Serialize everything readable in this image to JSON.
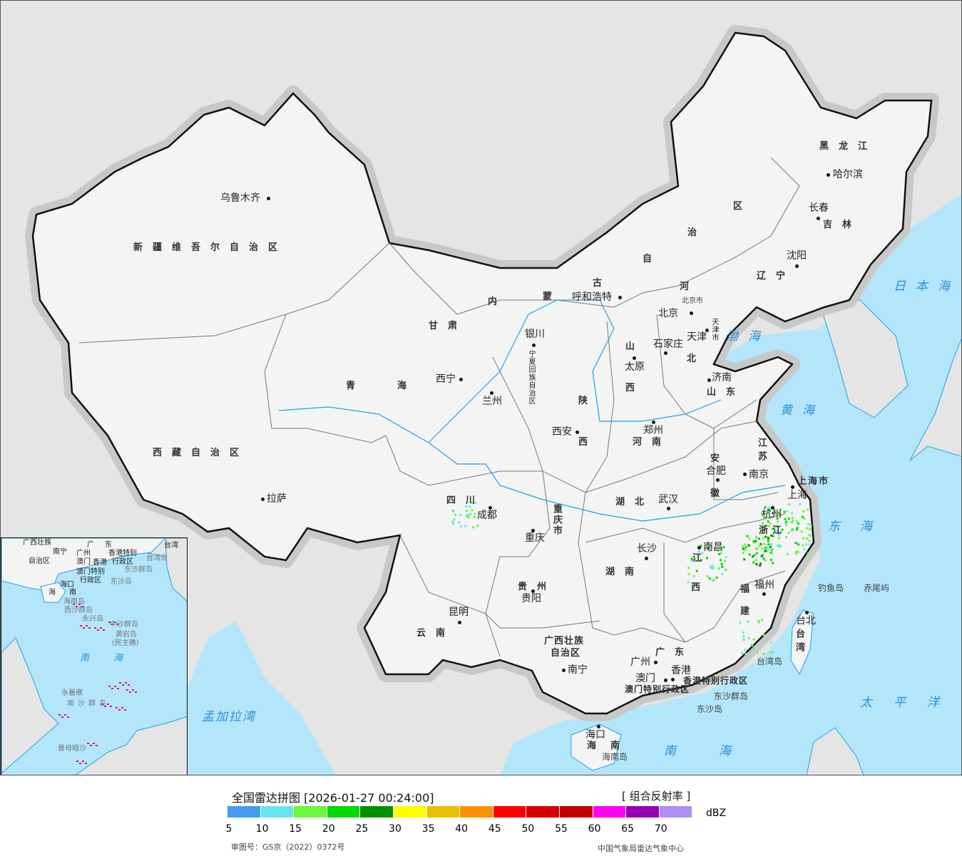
{
  "map": {
    "provinces": [
      "新疆维吾尔自治区",
      "西藏自治区",
      "青",
      "海",
      "甘肃",
      "内",
      "蒙",
      "古",
      "自",
      "治",
      "区",
      "黑龙江",
      "吉林",
      "辽宁",
      "河",
      "北",
      "山",
      "西",
      "山东",
      "河南",
      "陕",
      "西",
      "宁夏回族自治区",
      "四川",
      "重庆市",
      "湖北",
      "湖南",
      "贵州",
      "云南",
      "广西壮族",
      "自治区",
      "广东",
      "江",
      "西",
      "安",
      "徽",
      "江苏",
      "浙江",
      "福建",
      "台湾",
      "海南",
      "上海市",
      "北京市",
      "天津市"
    ],
    "cities": [
      "乌鲁木齐",
      "拉萨",
      "西宁",
      "兰州",
      "银川",
      "呼和浩特",
      "北京",
      "天津",
      "石家庄",
      "太原",
      "济南",
      "郑州",
      "西安",
      "合肥",
      "南京",
      "上海",
      "杭州",
      "武汉",
      "成都",
      "重庆",
      "长沙",
      "南昌",
      "福州",
      "贵阳",
      "昆明",
      "南宁",
      "广州",
      "香港",
      "澳门",
      "海口",
      "台北",
      "长春",
      "哈尔滨",
      "沈阳"
    ],
    "others": [
      "香港特别行政区",
      "澳门特别行政区",
      "东沙群岛",
      "东沙岛",
      "海南岛",
      "台湾岛",
      "钓鱼岛",
      "赤尾屿"
    ],
    "seas": [
      "日本海",
      "渤海",
      "黄海",
      "东海",
      "太平洋",
      "南海",
      "孟加拉湾"
    ],
    "inset": [
      "广西壮族",
      "自治区",
      "南宁",
      "广",
      "东",
      "广州",
      "澳门",
      "香港",
      "香港特别",
      "行政区",
      "澳门特别",
      "行政区",
      "台湾",
      "台湾岛",
      "东沙群岛",
      "东沙岛",
      "海口",
      "海",
      "南",
      "海南岛",
      "西沙群岛",
      "永兴岛",
      "中沙群岛",
      "黄岩岛",
      "(民主礁)",
      "南",
      "海",
      "永暑礁",
      "南沙群岛",
      "曾母暗沙"
    ],
    "colors": {
      "sea": "#b3e6fb",
      "land": "#e5e5e5",
      "china": "#f4f4f4",
      "border": "#111111",
      "river": "#1aa3e8",
      "islands": "#e0117f"
    }
  },
  "legend": {
    "title": "全国雷达拼图 [2026-01-27 00:24:00]",
    "product": "[ 组合反射率 ]",
    "unit": "dBZ",
    "ticks": [
      "5",
      "10",
      "15",
      "20",
      "25",
      "30",
      "35",
      "40",
      "45",
      "50",
      "55",
      "60",
      "65",
      "70"
    ],
    "colors": [
      "#439cf0",
      "#66e6ec",
      "#6cf63c",
      "#00d800",
      "#009000",
      "#ffff00",
      "#e8c000",
      "#ff9000",
      "#ff0000",
      "#d60000",
      "#c00000",
      "#ff00f0",
      "#9600b4",
      "#ad90f0"
    ],
    "approval": "审图号：GS京（2022）0372号",
    "org": "中国气象局雷达气象中心"
  }
}
